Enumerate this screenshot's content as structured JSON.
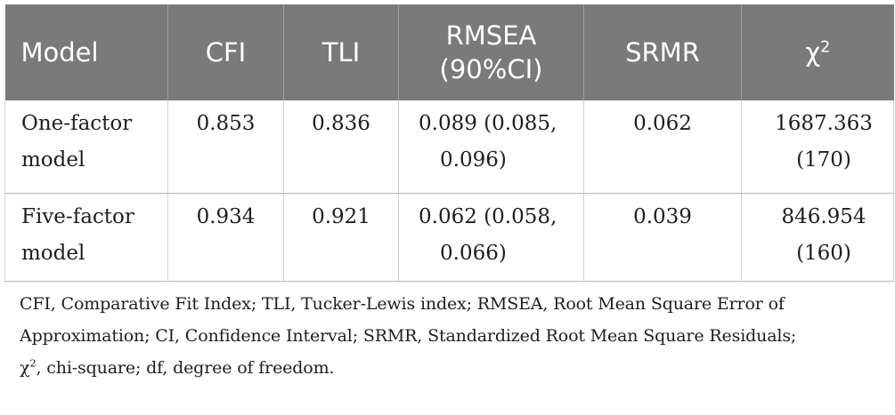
{
  "table": {
    "headers": {
      "model": "Model",
      "cfi": "CFI",
      "tli": "TLI",
      "rmsea_line1": "RMSEA",
      "rmsea_line2": "(90%CI)",
      "srmr": "SRMR",
      "chi_base": "χ",
      "chi_sup": "2"
    },
    "rows": [
      {
        "model_line1": "One-factor",
        "model_line2": "model",
        "cfi": "0.853",
        "tli": "0.836",
        "rmsea_line1": "0.089 (0.085,",
        "rmsea_line2": "0.096)",
        "srmr": "0.062",
        "chi_line1": "1687.363",
        "chi_line2": "(170)"
      },
      {
        "model_line1": "Five-factor",
        "model_line2": "model",
        "cfi": "0.934",
        "tli": "0.921",
        "rmsea_line1": "0.062 (0.058,",
        "rmsea_line2": "0.066)",
        "srmr": "0.039",
        "chi_line1": "846.954",
        "chi_line2": "(160)"
      }
    ]
  },
  "notes": {
    "line1": "CFI, Comparative Fit Index; TLI, Tucker-Lewis index; RMSEA, Root Mean Square Error of",
    "line2": "Approximation; CI, Confidence Interval; SRMR, Standardized Root Mean Square Residuals;",
    "line3_chi_base": "χ",
    "line3_chi_sup": "2",
    "line3_rest": ", chi-square; df, degree of freedom."
  },
  "colors": {
    "header_bg": "#7a7a7a",
    "header_text": "#ffffff",
    "body_text": "#1e1e1e"
  }
}
